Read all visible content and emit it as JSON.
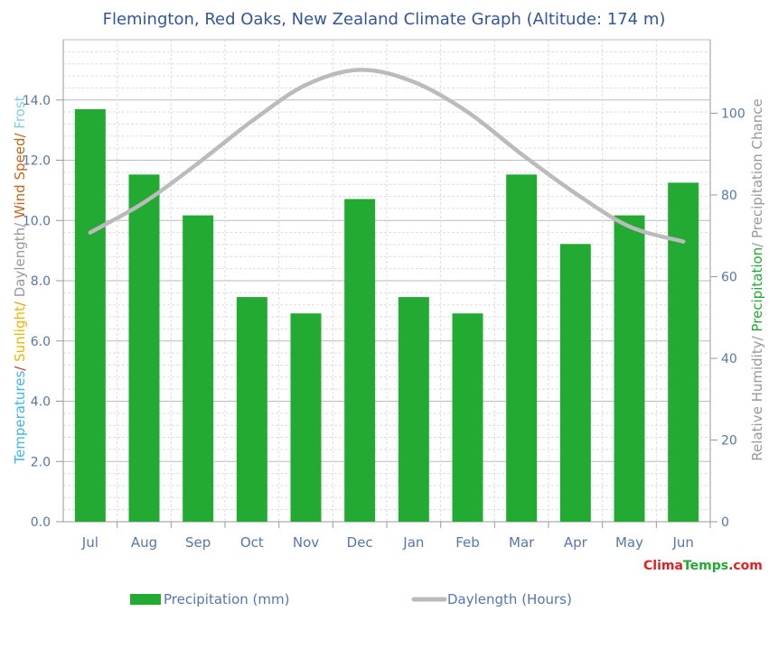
{
  "chart_data": {
    "type": "bar",
    "title": "Flemington, Red Oaks, New Zealand Climate Graph (Altitude: 174 m)",
    "categories": [
      "Jul",
      "Aug",
      "Sep",
      "Oct",
      "Nov",
      "Dec",
      "Jan",
      "Feb",
      "Mar",
      "Apr",
      "May",
      "Jun"
    ],
    "left_axis": {
      "label_parts": [
        {
          "text": "Temperatures",
          "color": "#3fb6e0"
        },
        {
          "text": "/ ",
          "color": "#c0392b"
        },
        {
          "text": "Sunlight",
          "color": "#f0b400"
        },
        {
          "text": "/ ",
          "color": "#e0a000"
        },
        {
          "text": "Daylength",
          "color": "#999999"
        },
        {
          "text": "/ ",
          "color": "#999999"
        },
        {
          "text": "Wind Speed",
          "color": "#c0651a"
        },
        {
          "text": "/ ",
          "color": "#c0651a"
        },
        {
          "text": "Frost",
          "color": "#7ecfe6"
        }
      ],
      "ylim": [
        0,
        16
      ],
      "ticks": [
        "0.0",
        "2.0",
        "4.0",
        "6.0",
        "8.0",
        "10.0",
        "12.0",
        "14.0"
      ]
    },
    "right_axis": {
      "label_parts": [
        {
          "text": "Relative Humidity",
          "color": "#999999"
        },
        {
          "text": "/ ",
          "color": "#999999"
        },
        {
          "text": "Precipitation",
          "color": "#22aa33"
        },
        {
          "text": "/ ",
          "color": "#999999"
        },
        {
          "text": "Precipitation Chance",
          "color": "#999999"
        }
      ],
      "ylim": [
        0,
        118
      ],
      "ticks": [
        "0",
        "20",
        "40",
        "60",
        "80",
        "100"
      ]
    },
    "series": [
      {
        "name": "Precipitation (mm)",
        "kind": "bar",
        "axis": "right",
        "color": "#22aa33",
        "values": [
          101,
          85,
          75,
          55,
          51,
          79,
          55,
          51,
          85,
          68,
          75,
          83
        ]
      },
      {
        "name": "Daylength (Hours)",
        "kind": "line",
        "axis": "left",
        "color": "#bbbbbb",
        "values": [
          9.6,
          10.6,
          11.9,
          13.3,
          14.5,
          15.0,
          14.6,
          13.6,
          12.2,
          10.9,
          9.8,
          9.3
        ]
      }
    ],
    "grid": true,
    "legend_position": "bottom"
  },
  "watermark": {
    "part1": "Clima",
    "part2": "Temps",
    "part3": ".com",
    "colors": {
      "part1": "#dd2222",
      "part2": "#22aa33",
      "part3": "#dd2222"
    }
  },
  "colors": {
    "title": "#335599",
    "tick_label": "#5577aa",
    "grid": "#cccccc",
    "axis": "#999999"
  }
}
